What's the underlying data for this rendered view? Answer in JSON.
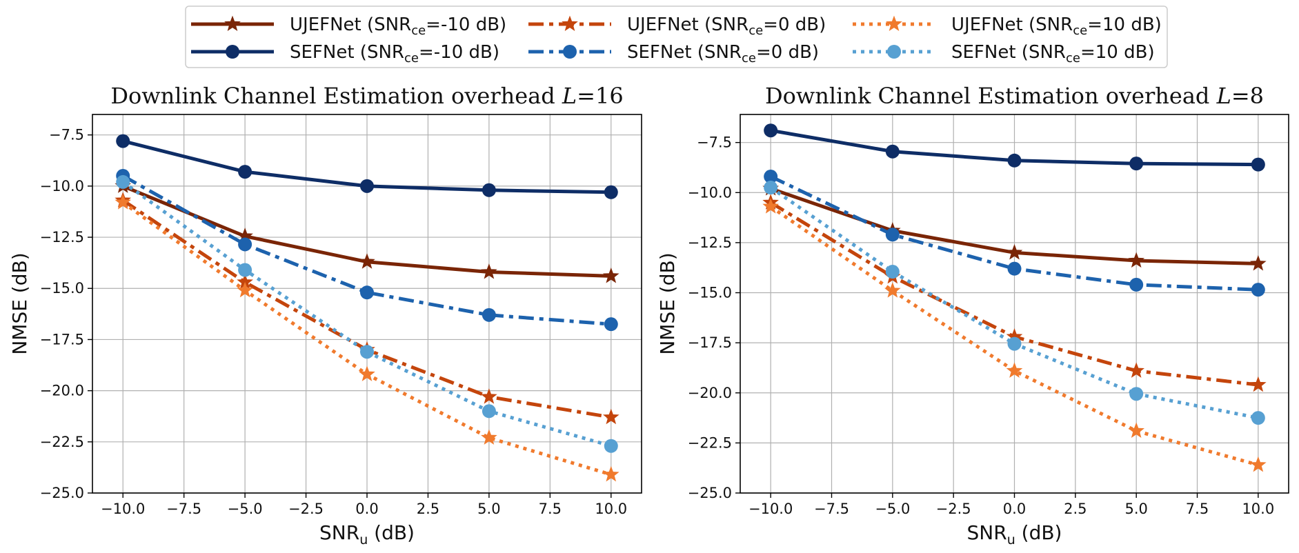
{
  "legend": {
    "items": [
      {
        "net": "UJEFNet",
        "snr": "-10 dB",
        "color": "#7a2506",
        "dash": "solid",
        "marker": "star"
      },
      {
        "net": "UJEFNet",
        "snr": "0 dB",
        "color": "#c4450c",
        "dash": "dashdot",
        "marker": "star"
      },
      {
        "net": "UJEFNet",
        "snr": "10 dB",
        "color": "#f07a2d",
        "dash": "dotted",
        "marker": "star"
      },
      {
        "net": "SEFNet",
        "snr": "-10 dB",
        "color": "#0e2d66",
        "dash": "solid",
        "marker": "circle"
      },
      {
        "net": "SEFNet",
        "snr": "0 dB",
        "color": "#1d62ad",
        "dash": "dashdot",
        "marker": "circle"
      },
      {
        "net": "SEFNet",
        "snr": "10 dB",
        "color": "#57a0d2",
        "dash": "dotted",
        "marker": "circle"
      }
    ],
    "snr_prefix": "SNR",
    "snr_sub": "ce"
  },
  "chart_data": [
    {
      "type": "line",
      "title": "Downlink Channel Estimation overhead ",
      "title_var": "L",
      "title_val": "=16",
      "xlabel": "SNR",
      "xlabel_sub": "u",
      "xlabel_unit": " (dB)",
      "ylabel": "NMSE (dB)",
      "x": [
        -10,
        -5,
        0,
        5,
        10
      ],
      "xlim": [
        -11.25,
        11.25
      ],
      "ylim": [
        -25,
        -6.5
      ],
      "xticks": [
        -10,
        -7.5,
        -5,
        -2.5,
        0,
        2.5,
        5,
        7.5,
        10
      ],
      "xtick_labels": [
        "−10.0",
        "−7.5",
        "−5.0",
        "−2.5",
        "0.0",
        "2.5",
        "5.0",
        "7.5",
        "10.0"
      ],
      "yticks": [
        -25,
        -22.5,
        -20,
        -17.5,
        -15,
        -12.5,
        -10,
        -7.5
      ],
      "ytick_labels": [
        "−25.0",
        "−22.5",
        "−20.0",
        "−17.5",
        "−15.0",
        "−12.5",
        "−10.0",
        "−7.5"
      ],
      "grid": true,
      "series": [
        {
          "name": "UJEFNet (SNRce=-10 dB)",
          "values": [
            -10.0,
            -12.45,
            -13.7,
            -14.2,
            -14.4
          ]
        },
        {
          "name": "UJEFNet (SNRce=0 dB)",
          "values": [
            -10.7,
            -14.7,
            -18.0,
            -20.3,
            -21.3
          ]
        },
        {
          "name": "UJEFNet (SNRce=10 dB)",
          "values": [
            -10.8,
            -15.1,
            -19.2,
            -22.3,
            -24.1
          ]
        },
        {
          "name": "SEFNet (SNRce=-10 dB)",
          "values": [
            -7.8,
            -9.3,
            -10.0,
            -10.2,
            -10.3
          ]
        },
        {
          "name": "SEFNet (SNRce=0 dB)",
          "values": [
            -9.5,
            -12.85,
            -15.2,
            -16.3,
            -16.75
          ]
        },
        {
          "name": "SEFNet (SNRce=10 dB)",
          "values": [
            -9.8,
            -14.1,
            -18.1,
            -21.0,
            -22.7
          ]
        }
      ]
    },
    {
      "type": "line",
      "title": "Downlink Channel Estimation overhead ",
      "title_var": "L",
      "title_val": "=8",
      "xlabel": "SNR",
      "xlabel_sub": "u",
      "xlabel_unit": " (dB)",
      "ylabel": "NMSE (dB)",
      "x": [
        -10,
        -5,
        0,
        5,
        10
      ],
      "xlim": [
        -11.25,
        11.25
      ],
      "ylim": [
        -25,
        -6.1
      ],
      "xticks": [
        -10,
        -7.5,
        -5,
        -2.5,
        0,
        2.5,
        5,
        7.5,
        10
      ],
      "xtick_labels": [
        "−10.0",
        "−7.5",
        "−5.0",
        "−2.5",
        "0.0",
        "2.5",
        "5.0",
        "7.5",
        "10.0"
      ],
      "yticks": [
        -25,
        -22.5,
        -20,
        -17.5,
        -15,
        -12.5,
        -10,
        -7.5
      ],
      "ytick_labels": [
        "−25.0",
        "−22.5",
        "−20.0",
        "−17.5",
        "−15.0",
        "−12.5",
        "−10.0",
        "−7.5"
      ],
      "grid": true,
      "series": [
        {
          "name": "UJEFNet (SNRce=-10 dB)",
          "values": [
            -9.8,
            -11.9,
            -13.0,
            -13.4,
            -13.55
          ]
        },
        {
          "name": "UJEFNet (SNRce=0 dB)",
          "values": [
            -10.5,
            -14.2,
            -17.2,
            -18.9,
            -19.6
          ]
        },
        {
          "name": "UJEFNet (SNRce=10 dB)",
          "values": [
            -10.7,
            -14.9,
            -18.9,
            -21.9,
            -23.6
          ]
        },
        {
          "name": "SEFNet (SNRce=-10 dB)",
          "values": [
            -6.9,
            -7.95,
            -8.4,
            -8.55,
            -8.6
          ]
        },
        {
          "name": "SEFNet (SNRce=0 dB)",
          "values": [
            -9.2,
            -12.1,
            -13.8,
            -14.6,
            -14.85
          ]
        },
        {
          "name": "SEFNet (SNRce=10 dB)",
          "values": [
            -9.75,
            -13.95,
            -17.55,
            -20.05,
            -21.25
          ]
        }
      ]
    }
  ]
}
